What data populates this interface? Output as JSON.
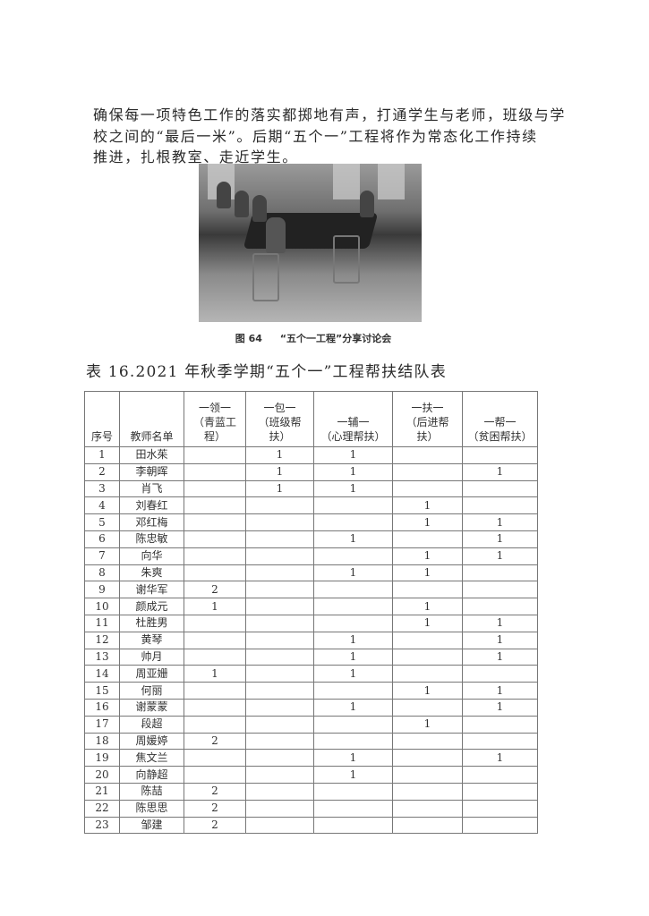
{
  "paragraph": {
    "lines": [
      "确保每一项特色工作的落实都掷地有声，打通学生与老师，班级与学",
      "校之间的“最后一米”。后期“五个一”工程将作为常态化工作持续",
      "推进，扎根教室、走近学生。"
    ]
  },
  "figure": {
    "number": "图 64",
    "caption": "“五个一工程”分享讨论会"
  },
  "table": {
    "title": "表 16.2021 年秋季学期“五个一”工程帮扶结队表",
    "headers": [
      "序号",
      "教师名单",
      "一领一（青蓝工程）",
      "一包一（班级帮扶）",
      "一辅一（心理帮扶）",
      "一扶一（后进帮扶）",
      "一帮一（贫困帮扶）"
    ],
    "header_lines": [
      [
        "序号"
      ],
      [
        "教师名单"
      ],
      [
        "一领一",
        "（青蓝工",
        "程）"
      ],
      [
        "一包一",
        "（班级帮",
        "扶）"
      ],
      [
        "一辅一",
        "（心理帮扶）"
      ],
      [
        "一扶一",
        "（后进帮",
        "扶）"
      ],
      [
        "一帮一",
        "（贫困帮扶）"
      ]
    ],
    "rows": [
      [
        "1",
        "田水茱",
        "",
        "1",
        "1",
        "",
        ""
      ],
      [
        "2",
        "李朝晖",
        "",
        "1",
        "1",
        "",
        "1"
      ],
      [
        "3",
        "肖飞",
        "",
        "1",
        "1",
        "",
        ""
      ],
      [
        "4",
        "刘春红",
        "",
        "",
        "",
        "1",
        ""
      ],
      [
        "5",
        "邓红梅",
        "",
        "",
        "",
        "1",
        "1"
      ],
      [
        "6",
        "陈忠敏",
        "",
        "",
        "1",
        "",
        "1"
      ],
      [
        "7",
        "向华",
        "",
        "",
        "",
        "1",
        "1"
      ],
      [
        "8",
        "朱爽",
        "",
        "",
        "1",
        "1",
        ""
      ],
      [
        "9",
        "谢华军",
        "2",
        "",
        "",
        "",
        ""
      ],
      [
        "10",
        "颜成元",
        "1",
        "",
        "",
        "1",
        ""
      ],
      [
        "11",
        "杜胜男",
        "",
        "",
        "",
        "1",
        "1"
      ],
      [
        "12",
        "黄琴",
        "",
        "",
        "1",
        "",
        "1"
      ],
      [
        "13",
        "帅月",
        "",
        "",
        "1",
        "",
        "1"
      ],
      [
        "14",
        "周亚姗",
        "1",
        "",
        "1",
        "",
        ""
      ],
      [
        "15",
        "何丽",
        "",
        "",
        "",
        "1",
        "1"
      ],
      [
        "16",
        "谢蒙蒙",
        "",
        "",
        "1",
        "",
        "1"
      ],
      [
        "17",
        "段超",
        "",
        "",
        "",
        "1",
        ""
      ],
      [
        "18",
        "周媛婷",
        "2",
        "",
        "",
        "",
        ""
      ],
      [
        "19",
        "焦文兰",
        "",
        "",
        "1",
        "",
        "1"
      ],
      [
        "20",
        "向静超",
        "",
        "",
        "1",
        "",
        ""
      ],
      [
        "21",
        "陈喆",
        "2",
        "",
        "",
        "",
        ""
      ],
      [
        "22",
        "陈思思",
        "2",
        "",
        "",
        "",
        ""
      ],
      [
        "23",
        "邹建",
        "2",
        "",
        "",
        "",
        ""
      ]
    ]
  }
}
